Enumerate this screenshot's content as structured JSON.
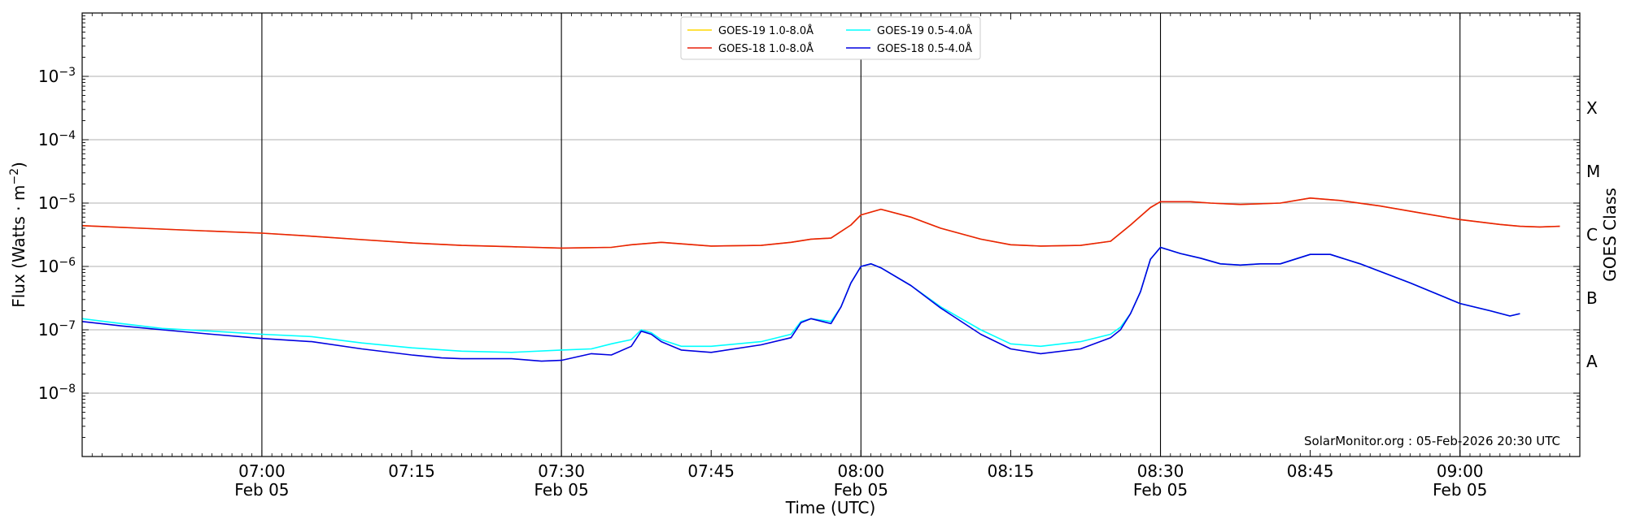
{
  "chart_data": {
    "type": "line",
    "credit": "SolarMonitor.org : 05-Feb-2026 20:30 UTC",
    "xlabel": "Time (UTC)",
    "ylabel": "Flux (Watts · m",
    "ylabel_sup": "−2",
    "ylabel_close": ")",
    "y2label": "GOES Class",
    "yscale": "log",
    "ylim": [
      1e-09,
      0.01
    ],
    "xlim": [
      "06:42",
      "09:12"
    ],
    "x_ticks": [
      {
        "time": "07:00",
        "label": "07:00",
        "date": "Feb 05"
      },
      {
        "time": "07:15",
        "label": "07:15",
        "date": ""
      },
      {
        "time": "07:30",
        "label": "07:30",
        "date": "Feb 05"
      },
      {
        "time": "07:45",
        "label": "07:45",
        "date": ""
      },
      {
        "time": "08:00",
        "label": "08:00",
        "date": "Feb 05"
      },
      {
        "time": "08:15",
        "label": "08:15",
        "date": ""
      },
      {
        "time": "08:30",
        "label": "08:30",
        "date": "Feb 05"
      },
      {
        "time": "08:45",
        "label": "08:45",
        "date": ""
      },
      {
        "time": "09:00",
        "label": "09:00",
        "date": "Feb 05"
      }
    ],
    "y_ticks": [
      {
        "exp": -3,
        "base": "10",
        "sup": "−3"
      },
      {
        "exp": -4,
        "base": "10",
        "sup": "−4"
      },
      {
        "exp": -5,
        "base": "10",
        "sup": "−5"
      },
      {
        "exp": -6,
        "base": "10",
        "sup": "−6"
      },
      {
        "exp": -7,
        "base": "10",
        "sup": "−7"
      },
      {
        "exp": -8,
        "base": "10",
        "sup": "−8"
      }
    ],
    "vlines": [
      "07:00",
      "07:30",
      "08:00",
      "08:30",
      "09:00"
    ],
    "hgrid_exponents": [
      -8,
      -7,
      -6,
      -5,
      -4,
      -3
    ],
    "goes_classes": [
      {
        "label": "X",
        "center_exp": -3.5
      },
      {
        "label": "M",
        "center_exp": -4.5
      },
      {
        "label": "C",
        "center_exp": -5.5
      },
      {
        "label": "B",
        "center_exp": -6.5
      },
      {
        "label": "A",
        "center_exp": -7.5
      }
    ],
    "legend": [
      {
        "name": "GOES-19 1.0-8.0Å",
        "color": "#FFD700",
        "series": 0
      },
      {
        "name": "GOES-18 1.0-8.0Å",
        "color": "#E8200C",
        "series": 1
      },
      {
        "name": "GOES-19 0.5-4.0Å",
        "color": "#00FFFF",
        "series": 2
      },
      {
        "name": "GOES-18 0.5-4.0Å",
        "color": "#0000E0",
        "series": 3
      }
    ],
    "series": [
      {
        "name": "GOES-19 1.0-8.0Å",
        "color": "#FFD700",
        "x": [
          "06:42",
          "06:48",
          "06:55",
          "07:00",
          "07:05",
          "07:10",
          "07:15",
          "07:20",
          "07:25",
          "07:30",
          "07:35",
          "07:37",
          "07:40",
          "07:45",
          "07:50",
          "07:53",
          "07:55",
          "07:57",
          "07:59",
          "08:00",
          "08:02",
          "08:05",
          "08:08",
          "08:12",
          "08:15",
          "08:18",
          "08:22",
          "08:25",
          "08:27",
          "08:29",
          "08:30",
          "08:33",
          "08:35",
          "08:38",
          "08:42",
          "08:45",
          "08:48",
          "08:52",
          "08:56",
          "09:00",
          "09:04",
          "09:06",
          "09:08",
          "09:10"
        ],
        "y": [
          4.4e-06,
          4e-06,
          3.6e-06,
          3.35e-06,
          3e-06,
          2.65e-06,
          2.35e-06,
          2.15e-06,
          2.05e-06,
          1.95e-06,
          2e-06,
          2.2e-06,
          2.4e-06,
          2.1e-06,
          2.15e-06,
          2.4e-06,
          2.7e-06,
          2.8e-06,
          4.5e-06,
          6.5e-06,
          8e-06,
          6e-06,
          4e-06,
          2.7e-06,
          2.2e-06,
          2.1e-06,
          2.15e-06,
          2.5e-06,
          4.5e-06,
          8.5e-06,
          1.05e-05,
          1.05e-05,
          1e-05,
          9.5e-06,
          1e-05,
          1.2e-05,
          1.1e-05,
          9e-06,
          7e-06,
          5.5e-06,
          4.6e-06,
          4.3e-06,
          4.2e-06,
          4.3e-06
        ]
      },
      {
        "name": "GOES-18 1.0-8.0Å",
        "color": "#E8200C",
        "x": [
          "06:42",
          "06:48",
          "06:55",
          "07:00",
          "07:05",
          "07:10",
          "07:15",
          "07:20",
          "07:25",
          "07:30",
          "07:35",
          "07:37",
          "07:40",
          "07:45",
          "07:50",
          "07:53",
          "07:55",
          "07:57",
          "07:59",
          "08:00",
          "08:02",
          "08:05",
          "08:08",
          "08:12",
          "08:15",
          "08:18",
          "08:22",
          "08:25",
          "08:27",
          "08:29",
          "08:30",
          "08:33",
          "08:35",
          "08:38",
          "08:42",
          "08:45",
          "08:48",
          "08:52",
          "08:56",
          "09:00",
          "09:04",
          "09:06",
          "09:08",
          "09:10"
        ],
        "y": [
          4.4e-06,
          4e-06,
          3.6e-06,
          3.35e-06,
          3e-06,
          2.65e-06,
          2.35e-06,
          2.15e-06,
          2.05e-06,
          1.95e-06,
          2e-06,
          2.2e-06,
          2.4e-06,
          2.1e-06,
          2.15e-06,
          2.4e-06,
          2.7e-06,
          2.8e-06,
          4.5e-06,
          6.5e-06,
          8e-06,
          6e-06,
          4e-06,
          2.7e-06,
          2.2e-06,
          2.1e-06,
          2.15e-06,
          2.5e-06,
          4.5e-06,
          8.5e-06,
          1.05e-05,
          1.05e-05,
          1e-05,
          9.5e-06,
          1e-05,
          1.2e-05,
          1.1e-05,
          9e-06,
          7e-06,
          5.5e-06,
          4.6e-06,
          4.3e-06,
          4.2e-06,
          4.3e-06
        ]
      },
      {
        "name": "GOES-19 0.5-4.0Å",
        "color": "#00FFFF",
        "x": [
          "06:42",
          "06:46",
          "06:50",
          "06:55",
          "07:00",
          "07:05",
          "07:10",
          "07:15",
          "07:20",
          "07:25",
          "07:30",
          "07:33",
          "07:35",
          "07:37",
          "07:38",
          "07:39",
          "07:40",
          "07:42",
          "07:45",
          "07:50",
          "07:53",
          "07:54",
          "07:55",
          "07:57",
          "07:58",
          "07:59",
          "08:00",
          "08:01",
          "08:02",
          "08:05",
          "08:08",
          "08:12",
          "08:15",
          "08:18",
          "08:22",
          "08:25",
          "08:26",
          "08:27",
          "08:28",
          "08:29",
          "08:30",
          "08:32",
          "08:34",
          "08:36",
          "08:38",
          "08:40",
          "08:42",
          "08:45",
          "08:47",
          "08:50",
          "08:55",
          "09:00",
          "09:03",
          "09:05",
          "09:06"
        ],
        "y": [
          1.5e-07,
          1.25e-07,
          1.05e-07,
          9.5e-08,
          8.5e-08,
          7.8e-08,
          6.2e-08,
          5.2e-08,
          4.6e-08,
          4.4e-08,
          4.8e-08,
          5e-08,
          6e-08,
          7e-08,
          1e-07,
          9e-08,
          7e-08,
          5.5e-08,
          5.5e-08,
          6.5e-08,
          8.5e-08,
          1.35e-07,
          1.5e-07,
          1.35e-07,
          2.3e-07,
          5.5e-07,
          1e-06,
          1.1e-06,
          9.5e-07,
          5e-07,
          2.3e-07,
          1e-07,
          6e-08,
          5.5e-08,
          6.5e-08,
          8.5e-08,
          1.1e-07,
          1.8e-07,
          4e-07,
          1.3e-06,
          2e-06,
          1.6e-06,
          1.35e-06,
          1.1e-06,
          1.05e-06,
          1.1e-06,
          1.1e-06,
          1.55e-06,
          1.55e-06,
          1.1e-06,
          5.5e-07,
          2.6e-07,
          2e-07,
          1.65e-07,
          1.8e-07
        ]
      },
      {
        "name": "GOES-18 0.5-4.0Å",
        "color": "#0000E0",
        "x": [
          "06:42",
          "06:46",
          "06:50",
          "06:55",
          "07:00",
          "07:05",
          "07:10",
          "07:15",
          "07:18",
          "07:20",
          "07:25",
          "07:28",
          "07:30",
          "07:33",
          "07:35",
          "07:37",
          "07:38",
          "07:39",
          "07:40",
          "07:42",
          "07:45",
          "07:50",
          "07:53",
          "07:54",
          "07:55",
          "07:57",
          "07:58",
          "07:59",
          "08:00",
          "08:01",
          "08:02",
          "08:05",
          "08:08",
          "08:12",
          "08:15",
          "08:18",
          "08:22",
          "08:25",
          "08:26",
          "08:27",
          "08:28",
          "08:29",
          "08:30",
          "08:32",
          "08:34",
          "08:36",
          "08:38",
          "08:40",
          "08:42",
          "08:45",
          "08:47",
          "08:50",
          "08:55",
          "09:00",
          "09:03",
          "09:05",
          "09:06"
        ],
        "y": [
          1.35e-07,
          1.15e-07,
          1e-07,
          8.5e-08,
          7.3e-08,
          6.5e-08,
          5e-08,
          4e-08,
          3.6e-08,
          3.5e-08,
          3.5e-08,
          3.2e-08,
          3.3e-08,
          4.2e-08,
          4e-08,
          5.5e-08,
          9.5e-08,
          8.5e-08,
          6.5e-08,
          4.8e-08,
          4.4e-08,
          5.8e-08,
          7.5e-08,
          1.3e-07,
          1.5e-07,
          1.25e-07,
          2.3e-07,
          5.5e-07,
          1e-06,
          1.1e-06,
          9.5e-07,
          5e-07,
          2.2e-07,
          8.5e-08,
          5e-08,
          4.2e-08,
          5e-08,
          7.5e-08,
          1e-07,
          1.8e-07,
          4e-07,
          1.3e-06,
          2e-06,
          1.6e-06,
          1.35e-06,
          1.1e-06,
          1.05e-06,
          1.1e-06,
          1.1e-06,
          1.55e-06,
          1.55e-06,
          1.1e-06,
          5.5e-07,
          2.6e-07,
          2e-07,
          1.65e-07,
          1.8e-07
        ]
      }
    ]
  }
}
